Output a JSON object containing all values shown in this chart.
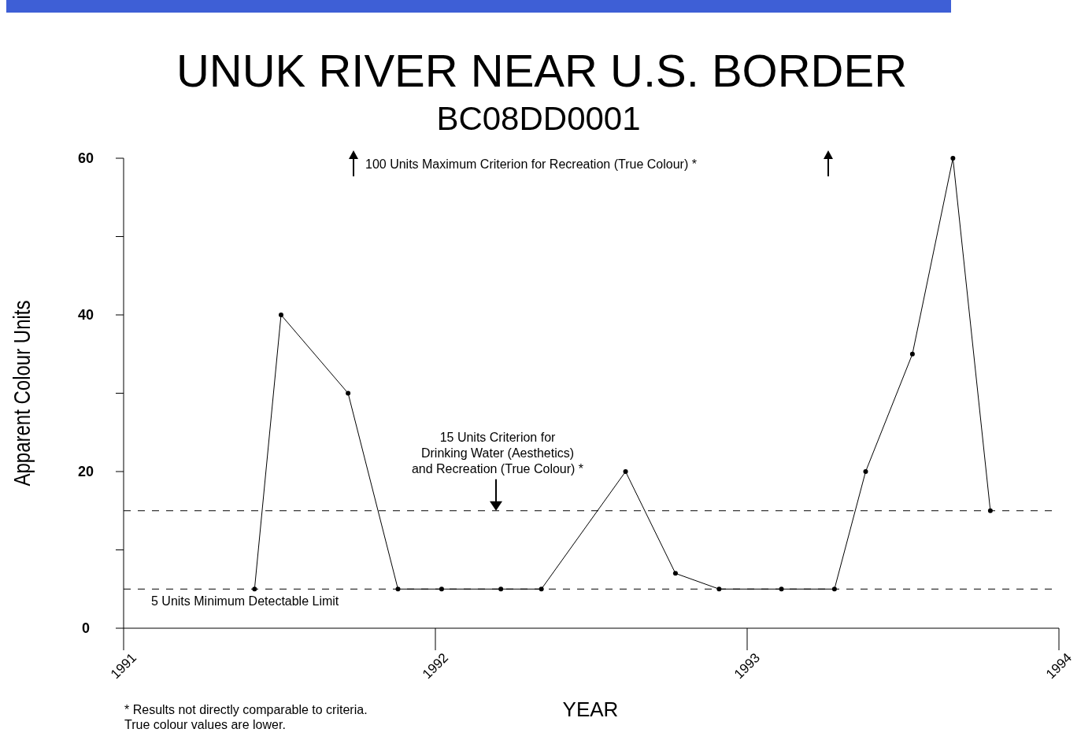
{
  "chart_data": {
    "type": "line",
    "title": "UNUK RIVER NEAR U.S. BORDER",
    "subtitle": "BC08DD0001",
    "xlabel": "YEAR",
    "ylabel": "Apparent Colour Units",
    "x": [
      1991.42,
      1991.505,
      1991.72,
      1991.88,
      1992.02,
      1992.21,
      1992.34,
      1992.61,
      1992.77,
      1992.91,
      1993.11,
      1993.28,
      1993.38,
      1993.53,
      1993.66,
      1993.78
    ],
    "series": [
      {
        "color": "#000000",
        "values": [
          5,
          40,
          30,
          5,
          5,
          5,
          5,
          20,
          7,
          5,
          5,
          5,
          20,
          35,
          60,
          15
        ]
      }
    ],
    "xlim": [
      1991,
      1994
    ],
    "xticks": [
      1991,
      1992,
      1993,
      1994
    ],
    "ylim": [
      0,
      60
    ],
    "yticks": [
      0,
      {
        "value": 10,
        "label": null
      },
      20,
      {
        "value": 30,
        "label": null
      },
      40,
      {
        "value": 50,
        "label": null
      },
      60
    ],
    "ref_lines": [
      {
        "axis": "y",
        "value": 15,
        "label": "15 Units Criterion for\nDrinking Water (Aesthetics)\nand Recreation (True Colour) *",
        "line_style": "dashed",
        "color": "#000000"
      },
      {
        "axis": "y",
        "value": 5,
        "label": "5 Units Minimum Detectable Limit",
        "line_style": "dashed",
        "color": "#000000"
      }
    ],
    "annotations": [
      "100 Units Maximum Criterion for Recreation (True Colour) *",
      "* Results not directly comparable to criteria.\nTrue colour values are lower."
    ],
    "marker": "circle",
    "line_style": "solid",
    "grid": false
  }
}
